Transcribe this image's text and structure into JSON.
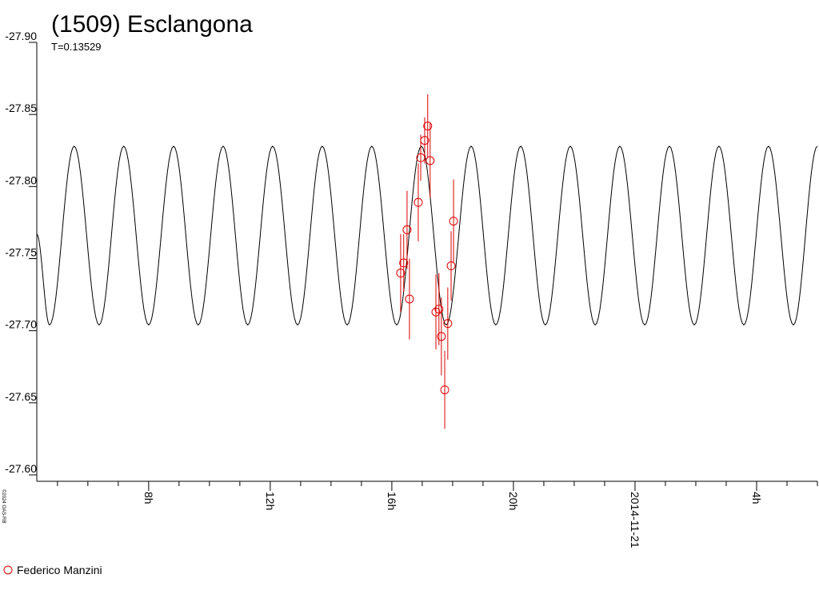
{
  "chart_data": {
    "type": "lightcurve",
    "title": "(1509) Esclangona",
    "subtitle": "T=0.13529",
    "credit": "©2024 OAS-RB",
    "ylim": [
      -27.9,
      -27.6
    ],
    "y_inverted": true,
    "yticks": [
      {
        "value": -27.9,
        "label": "-27.90"
      },
      {
        "value": -27.85,
        "label": "-27.85"
      },
      {
        "value": -27.8,
        "label": "-27.80"
      },
      {
        "value": -27.75,
        "label": "-27.75"
      },
      {
        "value": -27.7,
        "label": "-27.70"
      },
      {
        "value": -27.65,
        "label": "-27.65"
      },
      {
        "value": -27.6,
        "label": "-27.60"
      }
    ],
    "xlim": [
      4.32,
      30.0
    ],
    "xticks": [
      {
        "value": 8,
        "label": "8h"
      },
      {
        "value": 12,
        "label": "12h"
      },
      {
        "value": 16,
        "label": "16h"
      },
      {
        "value": 20,
        "label": "20h"
      },
      {
        "value": 24,
        "label": "2014-11-21"
      },
      {
        "value": 28,
        "label": "4h"
      }
    ],
    "xminorticks": [
      5,
      6,
      7,
      9,
      10,
      11,
      13,
      14,
      15,
      17,
      18,
      19,
      21,
      22,
      23,
      25,
      26,
      27,
      29,
      30
    ],
    "model": {
      "color": "#000000",
      "x": [
        4.32,
        4.74,
        5.55,
        6.37,
        7.18,
        8.0,
        8.82,
        9.63,
        10.45,
        11.26,
        12.08,
        12.9,
        13.71,
        14.53,
        15.34,
        16.16,
        16.97,
        17.79,
        18.61,
        19.42,
        20.24,
        21.05,
        21.87,
        22.69,
        23.5,
        24.32,
        25.13,
        25.95,
        26.76,
        27.58,
        28.39,
        29.21,
        30.0
      ],
      "values": [
        -27.767,
        -27.704,
        -27.828,
        -27.704,
        -27.828,
        -27.704,
        -27.828,
        -27.704,
        -27.828,
        -27.704,
        -27.828,
        -27.704,
        -27.828,
        -27.704,
        -27.828,
        -27.704,
        -27.828,
        -27.704,
        -27.828,
        -27.704,
        -27.828,
        -27.704,
        -27.828,
        -27.704,
        -27.828,
        -27.704,
        -27.828,
        -27.704,
        -27.828,
        -27.704,
        -27.828,
        -27.704,
        -27.828
      ]
    },
    "series": [
      {
        "name": "Federico Manzini",
        "color": "#dd0000",
        "x": [
          16.29,
          16.39,
          16.5,
          16.58,
          16.87,
          16.95,
          17.08,
          17.18,
          17.26,
          17.45,
          17.55,
          17.63,
          17.74,
          17.84,
          17.95,
          18.03
        ],
        "values": [
          -27.74,
          -27.747,
          -27.77,
          -27.722,
          -27.789,
          -27.82,
          -27.832,
          -27.842,
          -27.818,
          -27.713,
          -27.715,
          -27.696,
          -27.659,
          -27.705,
          -27.745,
          -27.776
        ],
        "errors": [
          0.027,
          0.02,
          0.027,
          0.028,
          0.027,
          0.016,
          0.016,
          0.022,
          0.026,
          0.026,
          0.025,
          0.027,
          0.027,
          0.025,
          0.024,
          0.029
        ]
      }
    ]
  }
}
